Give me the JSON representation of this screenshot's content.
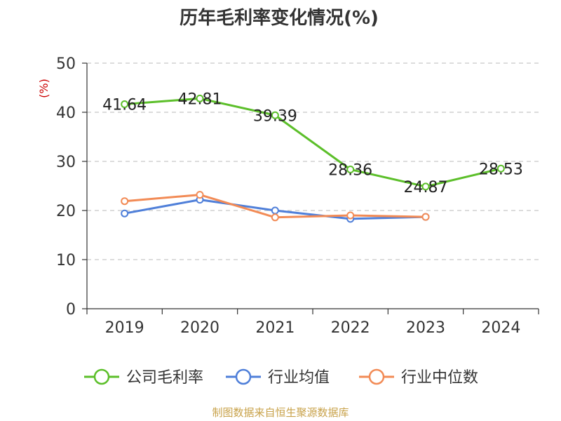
{
  "chart_data": {
    "type": "line",
    "title": "历年毛利率变化情况(%)",
    "ylabel": "(%)",
    "categories": [
      "2019",
      "2020",
      "2021",
      "2022",
      "2023",
      "2024"
    ],
    "ylim": [
      0,
      50
    ],
    "yticks": [
      0,
      10,
      20,
      30,
      40,
      50
    ],
    "grid": true,
    "legend_position": "bottom",
    "series": [
      {
        "name": "公司毛利率",
        "color": "#5cbf2a",
        "values": [
          41.64,
          42.81,
          39.39,
          28.36,
          24.87,
          28.53
        ],
        "labels": [
          "41.64",
          "42.81",
          "39.39",
          "28.36",
          "24.87",
          "28.53"
        ]
      },
      {
        "name": "行业均值",
        "color": "#4f7fd9",
        "values": [
          19.4,
          22.2,
          20.0,
          18.3,
          18.7,
          null
        ]
      },
      {
        "name": "行业中位数",
        "color": "#f28b56",
        "values": [
          21.9,
          23.2,
          18.6,
          19.0,
          18.7,
          null
        ]
      }
    ],
    "source": "制图数据来自恒生聚源数据库"
  }
}
